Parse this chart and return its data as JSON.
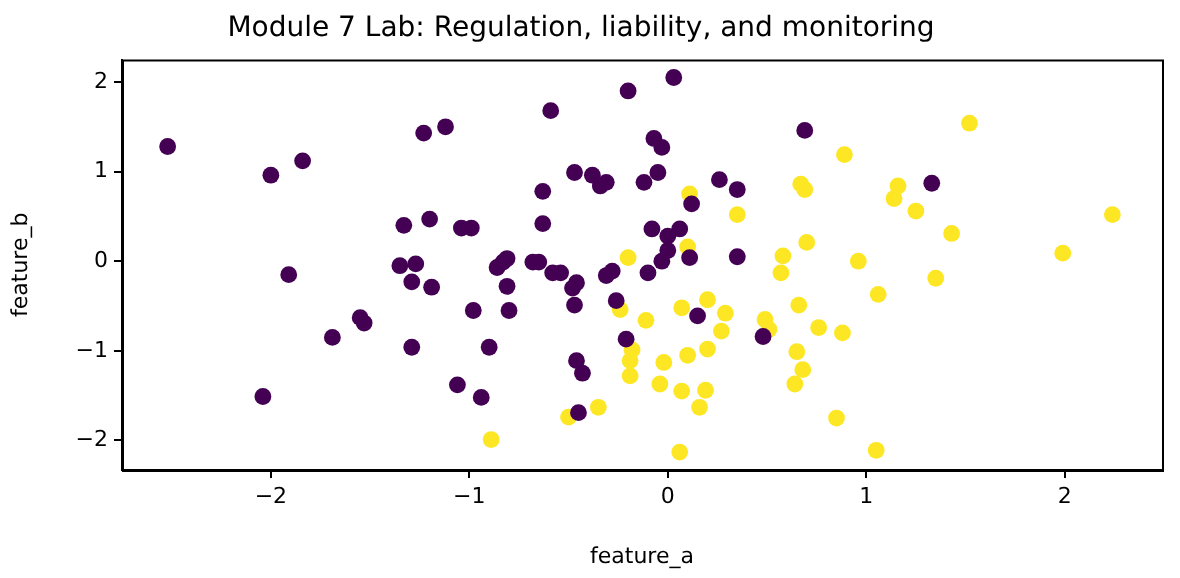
{
  "chart_data": {
    "type": "scatter",
    "title": "Module 7 Lab: Regulation, liability, and monitoring",
    "xlabel": "feature_a",
    "ylabel": "feature_b",
    "xlim": [
      -2.75,
      2.49
    ],
    "ylim": [
      -2.33,
      2.25
    ],
    "xticks": [
      -2,
      -1,
      0,
      1,
      2
    ],
    "yticks": [
      -2,
      -1,
      0,
      1,
      2
    ],
    "marker": "circle",
    "series": [
      {
        "color": "#440154",
        "x": [
          -2.52,
          -2.0,
          -1.84,
          -1.91,
          -1.69,
          -1.55,
          -1.53,
          -2.04,
          -0.2,
          0.03,
          -0.59,
          -1.23,
          -1.12,
          -0.07,
          -0.03,
          -0.47,
          -0.38,
          -0.34,
          -0.31,
          -0.63,
          -0.12,
          -0.05,
          0.26,
          0.35,
          0.12,
          -1.33,
          -1.2,
          -1.04,
          -0.99,
          -0.63,
          -0.08,
          0.0,
          0.06,
          0.0,
          -0.03,
          0.11,
          0.35,
          -1.35,
          -1.27,
          -1.29,
          -1.19,
          -0.86,
          -0.83,
          -0.81,
          -0.81,
          -0.68,
          -0.65,
          -0.58,
          -0.54,
          -0.48,
          -0.46,
          -0.31,
          -0.28,
          -0.1,
          -0.26,
          -0.47,
          -0.98,
          -0.8,
          0.15,
          0.48,
          -0.21,
          -1.29,
          -0.9,
          -0.46,
          -0.43,
          -1.06,
          -0.94,
          -0.45,
          0.69,
          1.33
        ],
        "values": [
          1.28,
          0.96,
          1.12,
          -0.15,
          -0.85,
          -0.63,
          -0.69,
          -1.51,
          1.9,
          2.05,
          1.68,
          1.43,
          1.5,
          1.37,
          1.27,
          0.99,
          0.96,
          0.84,
          0.88,
          0.78,
          0.88,
          0.99,
          0.91,
          0.8,
          0.64,
          0.4,
          0.47,
          0.37,
          0.37,
          0.42,
          0.36,
          0.28,
          0.36,
          0.12,
          0.0,
          0.04,
          0.05,
          -0.05,
          -0.03,
          -0.23,
          -0.29,
          -0.07,
          -0.01,
          0.03,
          -0.28,
          -0.01,
          -0.01,
          -0.13,
          -0.13,
          -0.3,
          -0.24,
          -0.16,
          -0.11,
          -0.13,
          -0.44,
          -0.49,
          -0.55,
          -0.55,
          -0.61,
          -0.84,
          -0.87,
          -0.96,
          -0.96,
          -1.11,
          -1.25,
          -1.38,
          -1.52,
          -1.69,
          1.46,
          0.87
        ]
      },
      {
        "color": "#fde725",
        "x": [
          0.11,
          0.35,
          0.1,
          -0.2,
          -0.24,
          -0.11,
          0.07,
          0.2,
          0.29,
          0.27,
          0.2,
          0.1,
          -0.02,
          -0.18,
          -0.19,
          -0.19,
          -0.04,
          0.07,
          0.19,
          0.16,
          -0.35,
          -0.5,
          -0.89,
          0.06,
          1.52,
          0.89,
          0.67,
          0.69,
          1.16,
          1.14,
          1.25,
          1.43,
          2.24,
          1.99,
          0.7,
          0.58,
          0.57,
          0.96,
          1.35,
          1.06,
          0.66,
          0.49,
          0.51,
          0.76,
          0.88,
          0.65,
          0.68,
          0.64,
          0.85,
          1.05
        ],
        "values": [
          0.75,
          0.52,
          0.16,
          0.04,
          -0.54,
          -0.66,
          -0.52,
          -0.43,
          -0.58,
          -0.78,
          -0.98,
          -1.05,
          -1.13,
          -0.99,
          -1.11,
          -1.28,
          -1.37,
          -1.45,
          -1.44,
          -1.63,
          -1.63,
          -1.74,
          -1.99,
          -2.13,
          1.54,
          1.19,
          0.86,
          0.8,
          0.84,
          0.7,
          0.56,
          0.31,
          0.52,
          0.09,
          0.21,
          0.06,
          -0.13,
          0.0,
          -0.19,
          -0.37,
          -0.49,
          -0.65,
          -0.76,
          -0.74,
          -0.8,
          -1.01,
          -1.21,
          -1.37,
          -1.75,
          -2.11
        ]
      }
    ]
  }
}
